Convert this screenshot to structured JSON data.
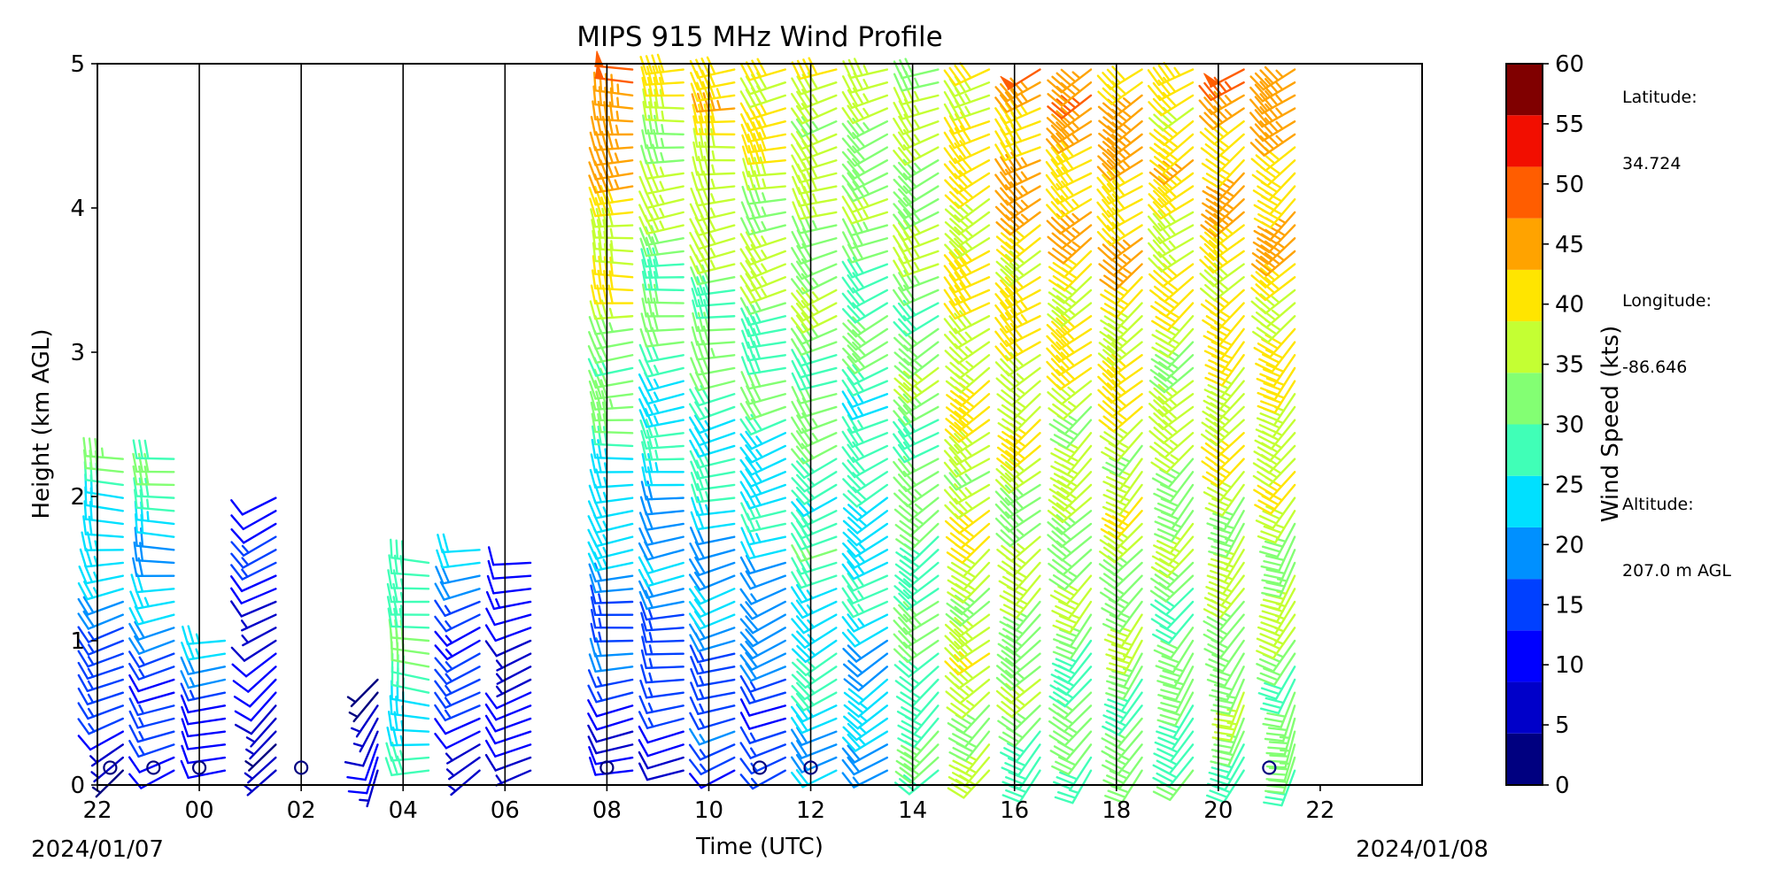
{
  "chart_data": {
    "type": "wind_barbs",
    "title": "MIPS 915 MHz Wind Profile",
    "xlabel": "Time (UTC)",
    "ylabel": "Height (km AGL)",
    "x_tick_labels": [
      "22",
      "00",
      "02",
      "04",
      "06",
      "08",
      "10",
      "12",
      "14",
      "16",
      "18",
      "20",
      "22"
    ],
    "x_range_hours": [
      -2,
      24
    ],
    "ylim": [
      0,
      5
    ],
    "y_ticks": [
      0,
      1,
      2,
      3,
      4,
      5
    ],
    "start_date_label": "2024/01/07",
    "end_date_label": "2024/01/08",
    "profile_interval_hours": 2,
    "grid": "vertical lines at each 2-hour tick",
    "colorbar": {
      "label": "Wind Speed (kts)",
      "ticks": [
        0,
        5,
        10,
        15,
        20,
        25,
        30,
        35,
        40,
        45,
        50,
        55,
        60
      ],
      "colors": [
        "#000080",
        "#0000c9",
        "#0000ff",
        "#0040ff",
        "#0090ff",
        "#00e0ff",
        "#40ffb7",
        "#83ff73",
        "#c4ff33",
        "#ffe500",
        "#ffa300",
        "#ff5d00",
        "#f20e00",
        "#800000"
      ]
    },
    "station": {
      "latitude_label": "Latitude:",
      "latitude": "34.724",
      "longitude_label": "Longitude:",
      "longitude": "-86.646",
      "altitude_label": "Altitude:",
      "altitude": "207.0 m AGL"
    },
    "wind_profiles": [
      {
        "time": -1.5,
        "top": 2.3,
        "low_speed": 6,
        "low_dir": 230,
        "high_speed": 30,
        "high_dir": 280
      },
      {
        "time": -0.5,
        "top": 2.3,
        "low_speed": 8,
        "low_dir": 240,
        "high_speed": 30,
        "high_dir": 280
      },
      {
        "time": 0.5,
        "top": 1.0,
        "low_speed": 6,
        "low_dir": 250,
        "high_speed": 22,
        "high_dir": 270
      },
      {
        "time": 1.5,
        "top": 2.0,
        "low_speed": 6,
        "low_dir": 220,
        "high_speed": 12,
        "high_dir": 250
      },
      {
        "time": 3.5,
        "top": 0.8,
        "low_speed": 6,
        "low_dir": 200,
        "high_speed": 6,
        "high_dir": 220
      },
      {
        "time": 4.5,
        "top": 1.6,
        "low_speed": 25,
        "low_dir": 270,
        "high_speed": 30,
        "high_dir": 280
      },
      {
        "time": 5.5,
        "top": 1.7,
        "low_speed": 8,
        "low_dir": 230,
        "high_speed": 20,
        "high_dir": 260
      },
      {
        "time": 6.5,
        "top": 1.6,
        "low_speed": 8,
        "low_dir": 240,
        "high_speed": 10,
        "high_dir": 260
      },
      {
        "time": 8.5,
        "top": 5.0,
        "low_speed": 8,
        "low_dir": 260,
        "high_speed": 50,
        "high_dir": 270
      },
      {
        "time": 9.5,
        "top": 5.0,
        "low_speed": 10,
        "low_dir": 260,
        "high_speed": 40,
        "high_dir": 265
      },
      {
        "time": 10.5,
        "top": 5.0,
        "low_speed": 12,
        "low_dir": 250,
        "high_speed": 42,
        "high_dir": 265
      },
      {
        "time": 11.5,
        "top": 5.0,
        "low_speed": 12,
        "low_dir": 245,
        "high_speed": 42,
        "high_dir": 260
      },
      {
        "time": 12.5,
        "top": 5.0,
        "low_speed": 22,
        "low_dir": 240,
        "high_speed": 38,
        "high_dir": 255
      },
      {
        "time": 13.5,
        "top": 5.0,
        "low_speed": 20,
        "low_dir": 235,
        "high_speed": 35,
        "high_dir": 250
      },
      {
        "time": 14.5,
        "top": 5.0,
        "low_speed": 28,
        "low_dir": 225,
        "high_speed": 35,
        "high_dir": 250
      },
      {
        "time": 15.5,
        "top": 5.0,
        "low_speed": 35,
        "low_dir": 225,
        "high_speed": 40,
        "high_dir": 245
      },
      {
        "time": 16.5,
        "top": 5.0,
        "low_speed": 30,
        "low_dir": 220,
        "high_speed": 45,
        "high_dir": 245
      },
      {
        "time": 17.5,
        "top": 5.0,
        "low_speed": 28,
        "low_dir": 215,
        "high_speed": 45,
        "high_dir": 240
      },
      {
        "time": 18.5,
        "top": 5.0,
        "low_speed": 30,
        "low_dir": 210,
        "high_speed": 45,
        "high_dir": 240
      },
      {
        "time": 19.5,
        "top": 5.0,
        "low_speed": 28,
        "low_dir": 210,
        "high_speed": 42,
        "high_dir": 240
      },
      {
        "time": 20.5,
        "top": 5.0,
        "low_speed": 30,
        "low_dir": 205,
        "high_speed": 45,
        "high_dir": 235
      },
      {
        "time": 21.5,
        "top": 5.0,
        "low_speed": 30,
        "low_dir": 200,
        "high_speed": 45,
        "high_dir": 235
      }
    ],
    "calm_markers": [
      {
        "time": -1.75,
        "height": 0.12
      },
      {
        "time": -0.9,
        "height": 0.12
      },
      {
        "time": 0.0,
        "height": 0.12
      },
      {
        "time": 2.0,
        "height": 0.12
      },
      {
        "time": 8.0,
        "height": 0.12
      },
      {
        "time": 11.0,
        "height": 0.12
      },
      {
        "time": 12.0,
        "height": 0.12
      },
      {
        "time": 21.0,
        "height": 0.12
      }
    ]
  }
}
